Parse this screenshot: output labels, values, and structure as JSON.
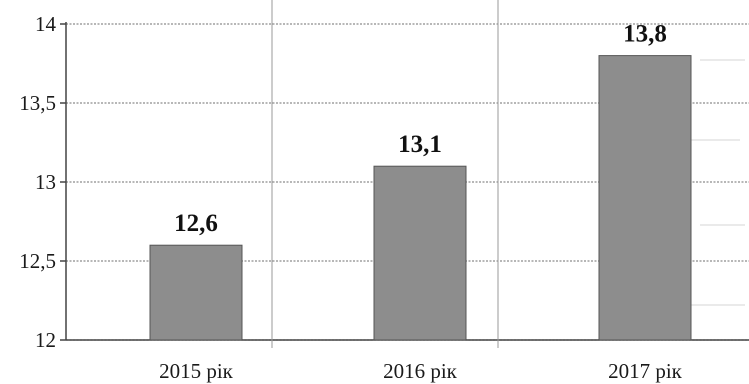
{
  "chart_data": {
    "type": "bar",
    "title": "",
    "xlabel": "",
    "ylabel": "",
    "categories": [
      "2015 рік",
      "2016 рік",
      "2017 рік"
    ],
    "values": [
      12.6,
      13.1,
      13.8
    ],
    "data_labels": [
      "12,6",
      "13,1",
      "13,8"
    ],
    "ylim": [
      12,
      14
    ],
    "yticks": [
      12,
      12.5,
      13,
      13.5,
      14
    ],
    "ytick_labels": [
      "12",
      "12,5",
      "13",
      "13,5",
      "14"
    ],
    "grid": true,
    "legend": "none",
    "colors": {
      "bar": "#8d8d8d",
      "bar_edge": "#555555",
      "grid": "#8c8c8c",
      "text": "#1a1a1a"
    }
  }
}
